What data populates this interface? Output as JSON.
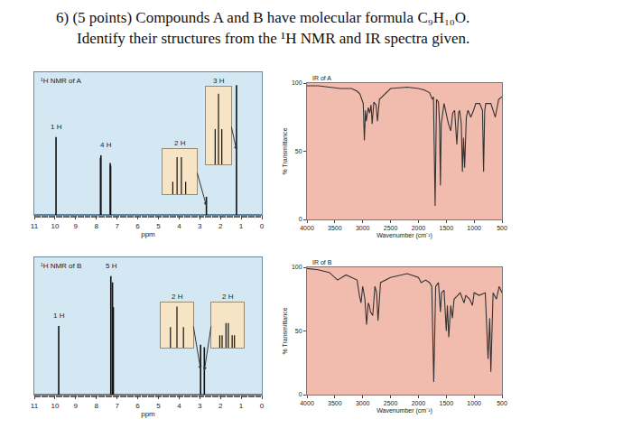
{
  "question": {
    "lines": [
      "6) (5 points) Compounds A and B have molecular formula C₉H₁₀O.",
      "Identify their structures from the ¹H NMR and IR spectra given."
    ]
  },
  "chart_data": [
    {
      "type": "nmr",
      "title": "¹H NMR of A",
      "xlabel": "ppm",
      "xlim": [
        11,
        0
      ],
      "xticks": [
        11,
        10,
        9,
        8,
        7,
        6,
        5,
        4,
        3,
        2,
        1,
        0
      ],
      "ylim": [
        0,
        110
      ],
      "tick_labels": "x",
      "color": "#111111",
      "peaks": [
        {
          "ppm": 9.95,
          "height": 60
        },
        {
          "ppm": 7.8,
          "height": 44
        },
        {
          "ppm": 7.78,
          "height": 46
        },
        {
          "ppm": 7.33,
          "height": 40
        },
        {
          "ppm": 7.31,
          "height": 38
        },
        {
          "ppm": 2.68,
          "height": 14
        },
        {
          "ppm": 1.225,
          "height": 100
        }
      ],
      "labels": [
        {
          "text": "1 H",
          "ppm": 9.95
        },
        {
          "text": "4 H",
          "ppm": 7.55
        }
      ],
      "insets": [
        {
          "label": "2 H",
          "ppm": 2.68,
          "xlim": [
            2.78,
            2.58
          ],
          "ylim": [
            0,
            110
          ],
          "peaks": [
            {
              "ppm": 2.645,
              "height": 30
            },
            {
              "ppm": 2.67,
              "height": 90
            },
            {
              "ppm": 2.695,
              "height": 90
            },
            {
              "ppm": 2.72,
              "height": 30
            }
          ]
        },
        {
          "label": "3 H",
          "ppm": 1.225,
          "xlim": [
            1.32,
            1.13
          ],
          "ylim": [
            0,
            110
          ],
          "peaks": [
            {
              "ppm": 1.2,
              "height": 50
            },
            {
              "ppm": 1.225,
              "height": 100
            },
            {
              "ppm": 1.25,
              "height": 50
            }
          ]
        }
      ]
    },
    {
      "type": "line",
      "title": "IR of A",
      "xlabel": "Wavenumber (cm⁻¹)",
      "ylabel": "% Transmittance",
      "xlim": [
        4000,
        500
      ],
      "xticks": [
        4000,
        3500,
        3000,
        2500,
        2000,
        1500,
        1000,
        500
      ],
      "ylim": [
        0,
        100
      ],
      "yticks": [
        0,
        50,
        100
      ],
      "grid": false,
      "color": "#333333",
      "x": [
        4000,
        3800,
        3600,
        3400,
        3200,
        3100,
        3050,
        2990,
        2970,
        2950,
        2935,
        2900,
        2875,
        2850,
        2830,
        2800,
        2780,
        2760,
        2735,
        2710,
        2700,
        2500,
        2200,
        2000,
        1900,
        1800,
        1750,
        1730,
        1700,
        1675,
        1640,
        1620,
        1605,
        1590,
        1575,
        1540,
        1460,
        1420,
        1385,
        1350,
        1310,
        1280,
        1260,
        1230,
        1210,
        1190,
        1170,
        1140,
        1110,
        1060,
        1010,
        970,
        900,
        850,
        830,
        810,
        790,
        700,
        620,
        560,
        500
      ],
      "values": [
        98,
        98,
        97,
        96,
        96,
        94,
        92,
        85,
        58,
        80,
        72,
        82,
        78,
        84,
        70,
        86,
        85,
        84,
        72,
        84,
        88,
        96,
        97,
        96,
        95,
        93,
        88,
        90,
        10,
        88,
        86,
        70,
        25,
        70,
        75,
        85,
        70,
        65,
        78,
        80,
        55,
        78,
        80,
        70,
        35,
        60,
        38,
        75,
        80,
        75,
        80,
        85,
        85,
        80,
        35,
        80,
        85,
        85,
        75,
        88,
        90
      ]
    },
    {
      "type": "nmr",
      "title": "¹H NMR of B",
      "xlabel": "ppm",
      "xlim": [
        11,
        0
      ],
      "xticks": [
        11,
        10,
        9,
        8,
        7,
        6,
        5,
        4,
        3,
        2,
        1,
        0
      ],
      "ylim": [
        0,
        110
      ],
      "tick_labels": "x",
      "color": "#111111",
      "peaks": [
        {
          "ppm": 9.82,
          "height": 55
        },
        {
          "ppm": 7.3,
          "height": 95
        },
        {
          "ppm": 7.22,
          "height": 90
        },
        {
          "ppm": 7.18,
          "height": 70
        },
        {
          "ppm": 2.96,
          "height": 40
        },
        {
          "ppm": 2.78,
          "height": 38
        }
      ],
      "labels": [
        {
          "text": "1 H",
          "ppm": 9.82
        },
        {
          "text": "5 H",
          "ppm": 7.25
        }
      ],
      "insets": [
        {
          "label": "2 H",
          "ppm": 2.96,
          "xlim": [
            3.06,
            2.86
          ],
          "ylim": [
            0,
            110
          ],
          "peaks": [
            {
              "ppm": 2.92,
              "height": 50
            },
            {
              "ppm": 2.96,
              "height": 100
            },
            {
              "ppm": 3.0,
              "height": 50
            }
          ]
        },
        {
          "label": "2 H",
          "ppm": 2.78,
          "xlim": [
            2.88,
            2.67
          ],
          "ylim": [
            0,
            110
          ],
          "peaks": [
            {
              "ppm": 2.73,
              "height": 30
            },
            {
              "ppm": 2.745,
              "height": 30
            },
            {
              "ppm": 2.77,
              "height": 60
            },
            {
              "ppm": 2.785,
              "height": 60
            },
            {
              "ppm": 2.81,
              "height": 30
            },
            {
              "ppm": 2.825,
              "height": 30
            }
          ]
        }
      ]
    },
    {
      "type": "line",
      "title": "IR of B",
      "xlabel": "Wavenumber (cm⁻¹)",
      "ylabel": "% Transmittance",
      "xlim": [
        4000,
        500
      ],
      "xticks": [
        4000,
        3500,
        3000,
        2500,
        2000,
        1500,
        1000,
        500
      ],
      "ylim": [
        0,
        100
      ],
      "yticks": [
        0,
        50,
        100
      ],
      "grid": false,
      "color": "#333333",
      "x": [
        4000,
        3800,
        3600,
        3450,
        3300,
        3100,
        3060,
        3030,
        3000,
        2960,
        2930,
        2900,
        2880,
        2860,
        2820,
        2780,
        2750,
        2725,
        2680,
        2500,
        2200,
        2000,
        1950,
        1870,
        1800,
        1760,
        1725,
        1690,
        1640,
        1605,
        1585,
        1540,
        1500,
        1480,
        1455,
        1420,
        1390,
        1360,
        1250,
        1180,
        1150,
        1080,
        1030,
        1000,
        910,
        800,
        750,
        720,
        700,
        660,
        600,
        550,
        500
      ],
      "values": [
        99,
        98,
        96,
        90,
        94,
        90,
        78,
        72,
        85,
        75,
        55,
        72,
        70,
        65,
        62,
        85,
        80,
        58,
        88,
        92,
        95,
        92,
        88,
        90,
        88,
        85,
        10,
        85,
        88,
        65,
        80,
        82,
        50,
        70,
        45,
        70,
        60,
        75,
        80,
        72,
        78,
        75,
        70,
        80,
        78,
        80,
        28,
        60,
        18,
        80,
        75,
        85,
        80
      ]
    }
  ]
}
